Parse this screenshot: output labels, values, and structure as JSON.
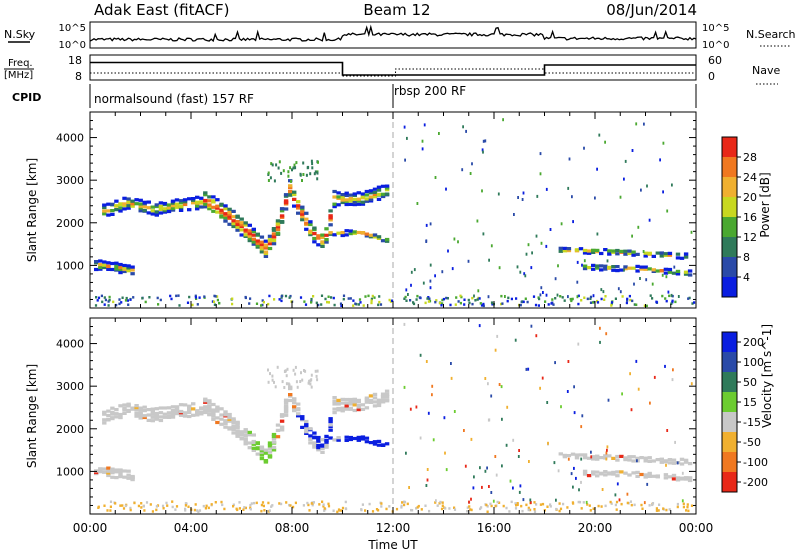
{
  "header": {
    "station": "Adak East (fitACF)",
    "beam": "Beam 12",
    "date": "08/Jun/2014"
  },
  "top_panels": {
    "nsky_label": "N.Sky",
    "nsky_ticks": [
      "10^5",
      "10^0"
    ],
    "nsearch_label": "N.Search",
    "freq_label_1": "Freq.",
    "freq_label_2": "[MHz]",
    "freq_ticks": [
      "18",
      "8"
    ],
    "nave_label": "Nave",
    "nave_ticks": [
      "60",
      "0"
    ],
    "cpid_label": "CPID",
    "cpid_segments": [
      {
        "label": "normalsound (fast) 157 RF",
        "start_hour": 0,
        "end_hour": 12
      },
      {
        "label": "rbsp 200 RF",
        "start_hour": 12,
        "end_hour": 24
      }
    ],
    "freq_segments": [
      {
        "start_hour": 0,
        "end_hour": 10,
        "value": 15
      },
      {
        "start_hour": 10,
        "end_hour": 18,
        "value": 10
      },
      {
        "start_hour": 18,
        "end_hour": 24,
        "value": 14
      }
    ]
  },
  "chart_data": [
    {
      "type": "heatmap",
      "panel": "power",
      "ylabel": "Slant Range [km]",
      "xlabel": "",
      "xlim": [
        0,
        24
      ],
      "ylim": [
        0,
        4600
      ],
      "yticks": [
        "1000",
        "2000",
        "3000",
        "4000"
      ],
      "xticks": [
        "00:00",
        "04:00",
        "08:00",
        "12:00",
        "16:00",
        "20:00",
        "00:00"
      ],
      "colorbar": {
        "label": "Power [dB]",
        "ticks": [
          "4",
          "8",
          "12",
          "16",
          "20",
          "24",
          "28"
        ],
        "colors": [
          "#0a1ee0",
          "#2a4aa8",
          "#2f7a5a",
          "#4aa830",
          "#c8d820",
          "#f0b030",
          "#f07820",
          "#e82818"
        ]
      },
      "regions": [
        {
          "kind": "band",
          "x": [
            0.5,
            1.5,
            2.5,
            3.5,
            4.5
          ],
          "y": [
            2300,
            2500,
            2350,
            2450,
            2500
          ],
          "thickness": 300
        },
        {
          "kind": "arc",
          "x": [
            4.5,
            5.5,
            6.5,
            7.0,
            7.5,
            8.0
          ],
          "y": [
            2600,
            2200,
            1700,
            1400,
            2000,
            3000
          ],
          "thickness": 400
        },
        {
          "kind": "arc",
          "x": [
            8.0,
            8.8,
            9.3,
            9.8
          ],
          "y": [
            2700,
            1800,
            1600,
            2900
          ],
          "thickness": 380
        },
        {
          "kind": "band",
          "x": [
            9.8,
            10.8,
            11.8
          ],
          "y": [
            2600,
            2600,
            2800
          ],
          "thickness": 300
        },
        {
          "kind": "band",
          "x": [
            9.5,
            10.8,
            11.9
          ],
          "y": [
            1800,
            1800,
            1600
          ],
          "thickness": 120
        },
        {
          "kind": "band",
          "x": [
            0.2,
            1.0,
            1.8
          ],
          "y": [
            1050,
            1000,
            900
          ],
          "thickness": 220
        },
        {
          "kind": "band",
          "x": [
            18.5,
            21.0,
            23.8
          ],
          "y": [
            1400,
            1350,
            1250
          ],
          "thickness": 120
        },
        {
          "kind": "band",
          "x": [
            19.5,
            22.0,
            23.8
          ],
          "y": [
            1000,
            950,
            850
          ],
          "thickness": 120
        }
      ],
      "scatter_x": [
        [
          12.5,
          24
        ]
      ],
      "scatter_y": [
        [
          300,
          4500
        ]
      ]
    },
    {
      "type": "heatmap",
      "panel": "velocity",
      "ylabel": "Slant Range [km]",
      "xlabel": "Time UT",
      "xlim": [
        0,
        24
      ],
      "ylim": [
        0,
        4600
      ],
      "yticks": [
        "1000",
        "2000",
        "3000",
        "4000"
      ],
      "xticks": [
        "00:00",
        "04:00",
        "08:00",
        "12:00",
        "16:00",
        "20:00",
        "00:00"
      ],
      "colorbar": {
        "label": "Velocity [m s^-1]",
        "ticks": [
          "200",
          "100",
          "50",
          "15",
          "-15",
          "-50",
          "-100",
          "-200"
        ],
        "colors": [
          "#0a1ee0",
          "#2a4aa8",
          "#2f7a5a",
          "#6ccc30",
          "#c8c8c8",
          "#f0b030",
          "#f07820",
          "#e82818"
        ]
      },
      "regions": [
        {
          "kind": "band",
          "x": [
            0.5,
            1.5,
            2.5,
            3.5,
            4.5
          ],
          "y": [
            2300,
            2500,
            2350,
            2450,
            2500
          ],
          "thickness": 300
        },
        {
          "kind": "arc",
          "x": [
            4.5,
            5.5,
            6.5,
            7.0,
            7.5,
            8.0
          ],
          "y": [
            2600,
            2200,
            1700,
            1400,
            2000,
            3000
          ],
          "thickness": 400
        },
        {
          "kind": "arc",
          "x": [
            8.0,
            8.8,
            9.3,
            9.8
          ],
          "y": [
            2700,
            1800,
            1600,
            2900
          ],
          "thickness": 380
        },
        {
          "kind": "band",
          "x": [
            9.8,
            10.8,
            11.8
          ],
          "y": [
            2600,
            2600,
            2800
          ],
          "thickness": 300
        },
        {
          "kind": "band",
          "x": [
            9.5,
            10.8,
            11.9
          ],
          "y": [
            1800,
            1800,
            1600
          ],
          "thickness": 120
        },
        {
          "kind": "band",
          "x": [
            0.2,
            1.0,
            1.8
          ],
          "y": [
            1050,
            1000,
            900
          ],
          "thickness": 220
        },
        {
          "kind": "band",
          "x": [
            18.5,
            21.0,
            23.8
          ],
          "y": [
            1400,
            1350,
            1250
          ],
          "thickness": 120
        },
        {
          "kind": "band",
          "x": [
            19.5,
            22.0,
            23.8
          ],
          "y": [
            1000,
            950,
            850
          ],
          "thickness": 120
        }
      ]
    }
  ]
}
